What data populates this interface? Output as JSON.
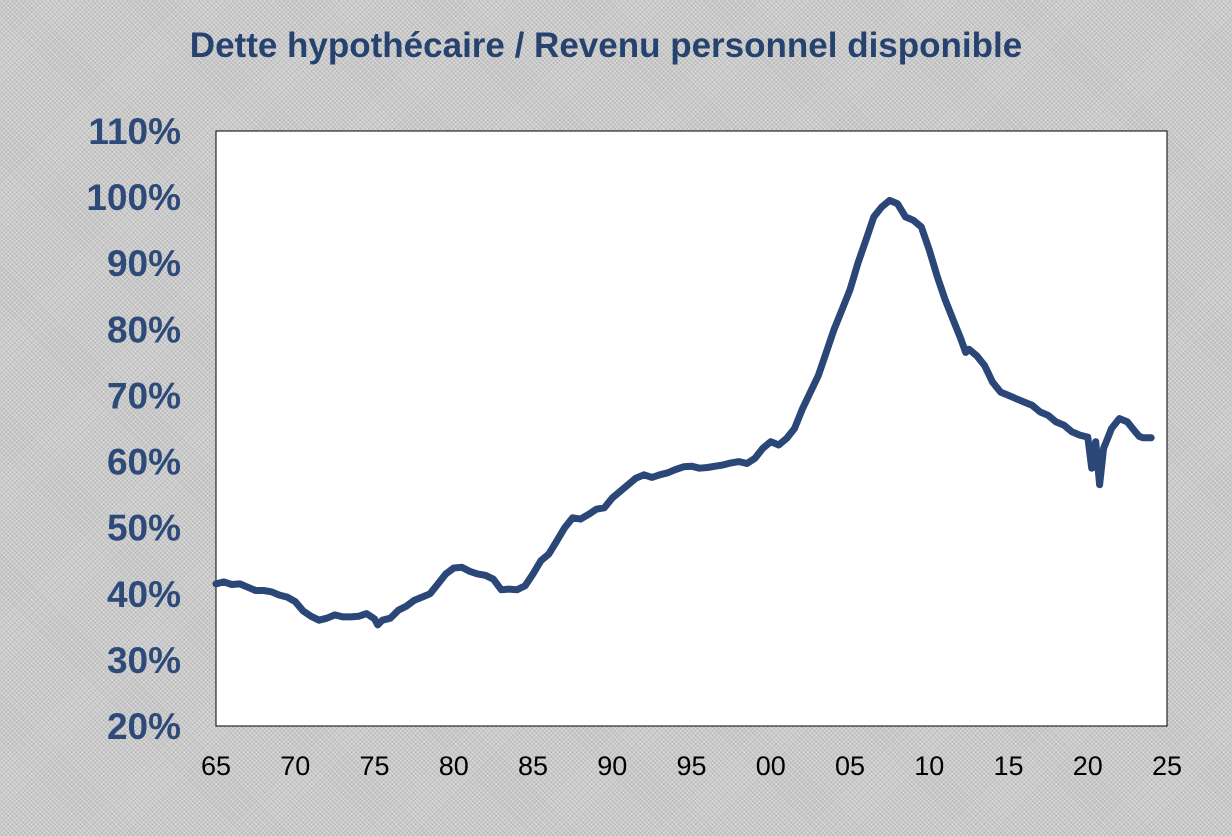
{
  "chart_data": {
    "type": "line",
    "title": "Dette hypothécaire / Revenu personnel disponible",
    "xlabel": "",
    "ylabel": "",
    "x_tick_labels": [
      "65",
      "70",
      "75",
      "80",
      "85",
      "90",
      "95",
      "00",
      "05",
      "10",
      "15",
      "20",
      "25"
    ],
    "y_tick_labels": [
      "110%",
      "100%",
      "90%",
      "80%",
      "70%",
      "60%",
      "50%",
      "40%",
      "30%",
      "20%"
    ],
    "xlim": [
      1965,
      2025
    ],
    "ylim": [
      20,
      110
    ],
    "grid": false,
    "legend": "none",
    "line_color": "#2b4777",
    "series": [
      {
        "x": [
          1965.0,
          1965.5,
          1966.0,
          1966.5,
          1967.0,
          1967.5,
          1968.0,
          1968.5,
          1969.0,
          1969.5,
          1970.0,
          1970.5,
          1971.0,
          1971.5,
          1972.0,
          1972.5,
          1973.0,
          1973.5,
          1974.0,
          1974.5,
          1975.0,
          1975.2,
          1975.5,
          1976.0,
          1976.5,
          1977.0,
          1977.5,
          1978.0,
          1978.5,
          1979.0,
          1979.5,
          1980.0,
          1980.5,
          1981.0,
          1981.5,
          1982.0,
          1982.5,
          1983.0,
          1983.5,
          1984.0,
          1984.5,
          1985.0,
          1985.5,
          1986.0,
          1986.5,
          1987.0,
          1987.5,
          1988.0,
          1988.5,
          1989.0,
          1989.5,
          1990.0,
          1990.5,
          1991.0,
          1991.5,
          1992.0,
          1992.5,
          1993.0,
          1993.5,
          1994.0,
          1994.5,
          1995.0,
          1995.5,
          1996.0,
          1996.5,
          1997.0,
          1997.5,
          1998.0,
          1998.5,
          1999.0,
          1999.5,
          2000.0,
          2000.5,
          2001.0,
          2001.5,
          2002.0,
          2002.5,
          2003.0,
          2003.5,
          2004.0,
          2004.5,
          2005.0,
          2005.5,
          2006.0,
          2006.5,
          2007.0,
          2007.5,
          2008.0,
          2008.5,
          2009.0,
          2009.5,
          2010.0,
          2010.5,
          2011.0,
          2011.5,
          2012.0,
          2012.3,
          2012.5,
          2013.0,
          2013.5,
          2014.0,
          2014.5,
          2015.0,
          2015.5,
          2016.0,
          2016.5,
          2017.0,
          2017.5,
          2018.0,
          2018.5,
          2019.0,
          2019.5,
          2020.0,
          2020.25,
          2020.5,
          2020.75,
          2021.0,
          2021.25,
          2021.5,
          2022.0,
          2022.5,
          2023.0,
          2023.25,
          2023.5,
          2024.0
        ],
        "y": [
          41.5,
          41.8,
          41.4,
          41.5,
          41.0,
          40.5,
          40.5,
          40.3,
          39.8,
          39.5,
          38.8,
          37.4,
          36.6,
          36.0,
          36.3,
          36.8,
          36.5,
          36.5,
          36.6,
          37.0,
          36.2,
          35.3,
          36.0,
          36.3,
          37.5,
          38.1,
          39.0,
          39.5,
          40.0,
          41.5,
          43.0,
          43.9,
          44.0,
          43.4,
          43.0,
          42.8,
          42.2,
          40.6,
          40.7,
          40.6,
          41.2,
          43.0,
          45.0,
          46.0,
          48.0,
          50.0,
          51.5,
          51.3,
          52.0,
          52.8,
          53.0,
          54.5,
          55.5,
          56.5,
          57.5,
          58.0,
          57.6,
          58.0,
          58.3,
          58.8,
          59.2,
          59.3,
          59.0,
          59.1,
          59.3,
          59.5,
          59.8,
          60.0,
          59.7,
          60.5,
          62.0,
          63.0,
          62.5,
          63.5,
          65.0,
          68.0,
          70.5,
          73.0,
          76.5,
          80.0,
          83.0,
          86.0,
          90.0,
          93.5,
          97.0,
          98.5,
          99.5,
          99.0,
          97.0,
          96.5,
          95.5,
          92.0,
          88.0,
          84.5,
          81.5,
          78.5,
          76.5,
          77.0,
          76.0,
          74.5,
          72.0,
          70.5,
          70.0,
          69.5,
          69.0,
          68.5,
          67.5,
          67.0,
          66.0,
          65.5,
          64.5,
          64.0,
          63.7,
          59.0,
          63.0,
          56.5,
          62.0,
          63.5,
          65.0,
          66.5,
          66.0,
          64.5,
          63.8,
          63.6,
          63.6
        ]
      }
    ]
  }
}
